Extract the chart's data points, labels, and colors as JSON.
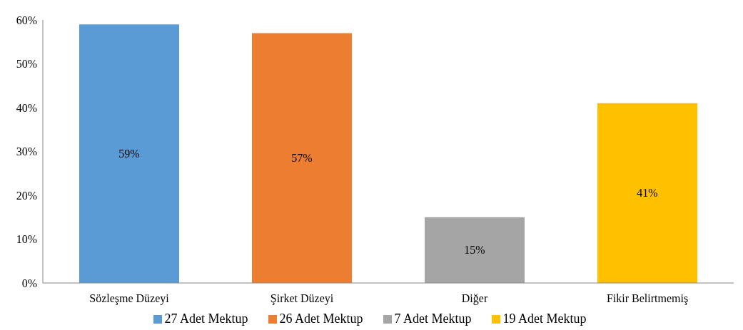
{
  "chart_data": {
    "type": "bar",
    "categories": [
      "Sözleşme Düzeyi",
      "Şirket Düzeyi",
      "Diğer",
      "Fikir Belirtmemiş"
    ],
    "series": [
      {
        "name": "27 Adet Mektup",
        "color": "#5b9bd5",
        "values": [
          59,
          null,
          null,
          null
        ],
        "value_labels": [
          "59%",
          null,
          null,
          null
        ]
      },
      {
        "name": "26 Adet Mektup",
        "color": "#ed7d31",
        "values": [
          null,
          57,
          null,
          null
        ],
        "value_labels": [
          null,
          "57%",
          null,
          null
        ]
      },
      {
        "name": "7 Adet Mektup",
        "color": "#a5a5a5",
        "values": [
          null,
          null,
          15,
          null
        ],
        "value_labels": [
          null,
          null,
          "15%",
          null
        ]
      },
      {
        "name": "19 Adet Mektup",
        "color": "#ffc000",
        "values": [
          null,
          null,
          null,
          41
        ],
        "value_labels": [
          null,
          null,
          null,
          "41%"
        ]
      }
    ],
    "ylim": [
      0,
      60
    ],
    "yticks": [
      {
        "value": 0,
        "label": "0%"
      },
      {
        "value": 10,
        "label": "10%"
      },
      {
        "value": 20,
        "label": "20%"
      },
      {
        "value": 30,
        "label": "30%"
      },
      {
        "value": 40,
        "label": "40%"
      },
      {
        "value": 50,
        "label": "50%"
      },
      {
        "value": 60,
        "label": "60%"
      }
    ],
    "grid": false,
    "legend": "bottom"
  }
}
